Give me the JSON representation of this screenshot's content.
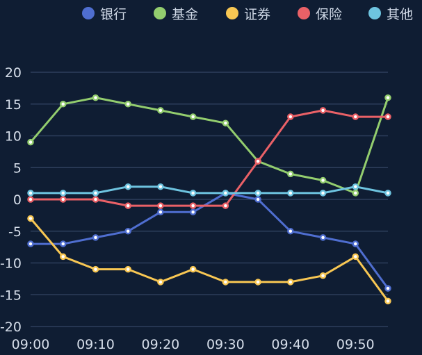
{
  "chart_data": {
    "type": "line",
    "categories": [
      "09:00",
      "09:05",
      "09:10",
      "09:15",
      "09:20",
      "09:25",
      "09:30",
      "09:35",
      "09:40",
      "09:45",
      "09:50",
      "09:55"
    ],
    "x_tick_labels": [
      "09:00",
      "09:10",
      "09:20",
      "09:30",
      "09:40",
      "09:50"
    ],
    "ylim": [
      -20,
      20
    ],
    "y_ticks": [
      -20,
      -15,
      -10,
      -5,
      0,
      5,
      10,
      15,
      20
    ],
    "grid": true,
    "legend_position": "top-right",
    "series": [
      {
        "name": "银行",
        "color": "#4f6ed0",
        "values": [
          -7,
          -7,
          -6,
          -5,
          -2,
          -2,
          1,
          0,
          -5,
          -6,
          -7,
          -14
        ]
      },
      {
        "name": "基金",
        "color": "#93cd6e",
        "values": [
          9,
          15,
          16,
          15,
          14,
          13,
          12,
          6,
          4,
          3,
          1,
          16
        ]
      },
      {
        "name": "证券",
        "color": "#f8c753",
        "values": [
          -3,
          -9,
          -11,
          -11,
          -13,
          -11,
          -13,
          -13,
          -13,
          -12,
          -9,
          -16
        ]
      },
      {
        "name": "保险",
        "color": "#ea6167",
        "values": [
          0,
          0,
          0,
          -1,
          -1,
          -1,
          -1,
          6,
          13,
          14,
          13,
          13
        ]
      },
      {
        "name": "其他",
        "color": "#6ec4e0",
        "values": [
          1,
          1,
          1,
          2,
          2,
          1,
          1,
          1,
          1,
          1,
          2,
          1
        ]
      }
    ]
  }
}
